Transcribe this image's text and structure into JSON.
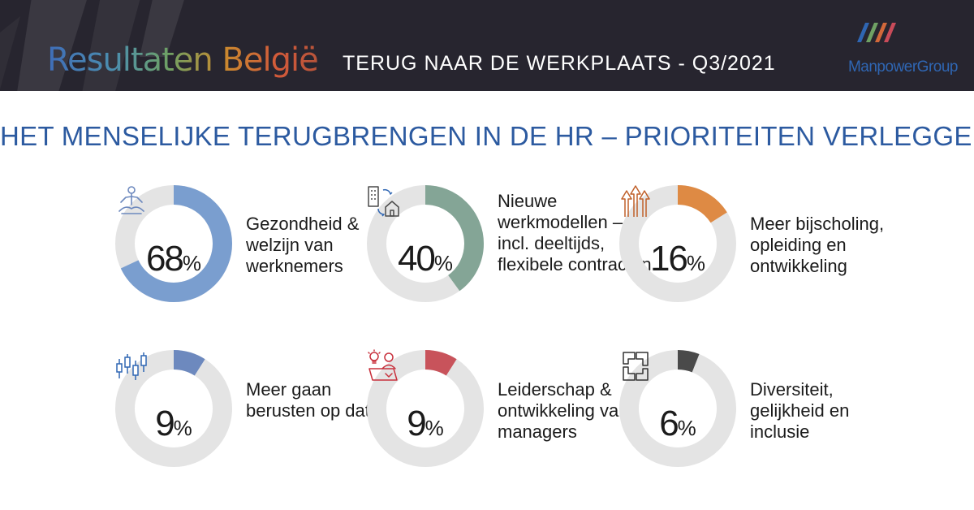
{
  "header": {
    "title": "Resultaten België",
    "subtitle": "TERUG NAAR  DE WERKPLAATS - Q3/2021",
    "logo_text": "ManpowerGroup",
    "logo_icon": "manpowergroup-logo-icon"
  },
  "main": {
    "heading": "HET MENSELIJKE TERUGBRENGEN IN DE HR – PRIORITEITEN VERLEGGEN"
  },
  "colors": {
    "track": "#e4e4e4",
    "header_bg": "#27252f",
    "heading": "#2c5aa0"
  },
  "chart_data": {
    "type": "donut",
    "items": [
      {
        "value": 68,
        "unit": "%",
        "label": "Gezondheid & welzijn van werknemers",
        "color": "#7a9ecf",
        "icon": "meditation-icon"
      },
      {
        "value": 40,
        "unit": "%",
        "label": "Nieuwe werkmodellen – incl. deeltijds, flexibele contracten",
        "color": "#84a596",
        "icon": "office-to-home-icon"
      },
      {
        "value": 16,
        "unit": "%",
        "label": "Meer bijscholing, opleiding en ontwikkeling",
        "color": "#de8a44",
        "icon": "growth-arrows-icon"
      },
      {
        "value": 9,
        "unit": "%",
        "label": "Meer gaan berusten op data",
        "color": "#6d89be",
        "icon": "candlestick-chart-icon"
      },
      {
        "value": 9,
        "unit": "%",
        "label": "Leiderschap & ontwikkeling van managers",
        "color": "#c8535b",
        "icon": "idea-person-icon"
      },
      {
        "value": 6,
        "unit": "%",
        "label": "Diversiteit, gelijkheid en inclusie",
        "color": "#4a4a4a",
        "icon": "joined-hands-icon"
      }
    ]
  }
}
